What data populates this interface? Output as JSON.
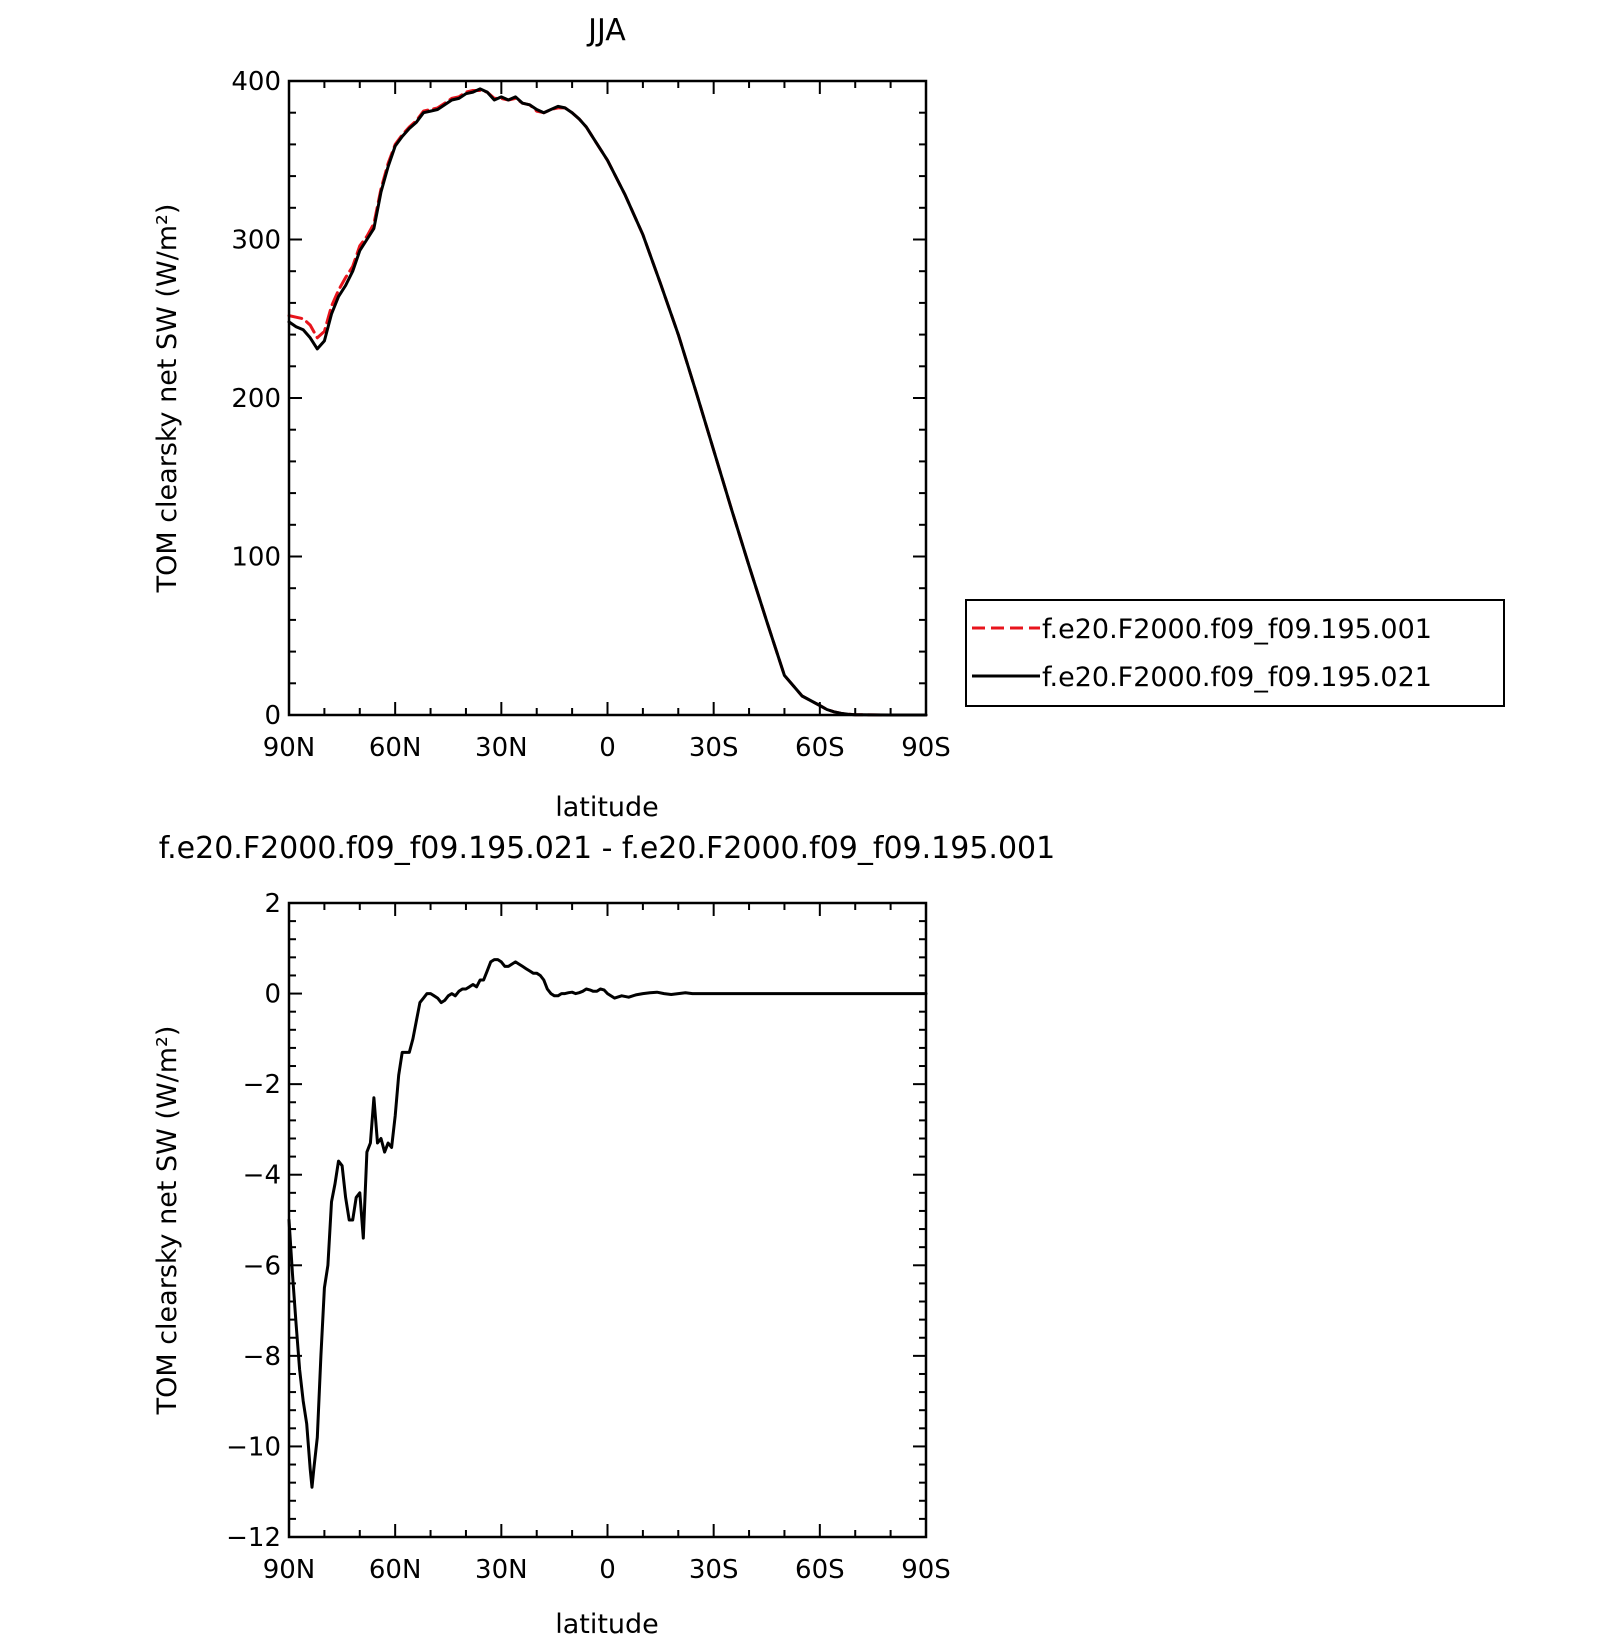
{
  "chart_data": [
    {
      "type": "line",
      "title": "JJA",
      "xlabel": "latitude",
      "ylabel": "TOM clearsky net SW (W/m²)",
      "xlim": [
        90,
        -90
      ],
      "ylim": [
        0,
        400
      ],
      "x_ticks": [
        {
          "value": 90,
          "label": "90N"
        },
        {
          "value": 60,
          "label": "60N"
        },
        {
          "value": 30,
          "label": "30N"
        },
        {
          "value": 0,
          "label": "0"
        },
        {
          "value": -30,
          "label": "30S"
        },
        {
          "value": -60,
          "label": "60S"
        },
        {
          "value": -90,
          "label": "90S"
        }
      ],
      "y_ticks": [
        0,
        100,
        200,
        300,
        400
      ],
      "legend_position": "right",
      "series": [
        {
          "name": "f.e20.F2000.f09_f09.195.001",
          "color": "#e8141c",
          "dash": "dashed",
          "x": [
            90,
            88,
            86,
            84,
            82,
            80,
            78,
            76,
            74,
            72,
            70,
            68,
            66,
            64,
            62,
            60,
            58,
            56,
            54,
            52,
            50,
            48,
            46,
            44,
            42,
            40,
            38,
            36,
            34,
            32,
            30,
            28,
            26,
            24,
            22,
            20,
            18,
            16,
            14,
            12,
            10,
            8,
            6,
            4,
            2,
            0,
            -5,
            -10,
            -15,
            -20,
            -25,
            -30,
            -35,
            -40,
            -45,
            -50,
            -55,
            -60,
            -62,
            -64,
            -66,
            -68,
            -70,
            -72,
            -75,
            -80,
            -85,
            -90
          ],
          "y": [
            252,
            251,
            250,
            246,
            238,
            242,
            258,
            268,
            276,
            283,
            296,
            302,
            310,
            332,
            348,
            360,
            366,
            371,
            375,
            381,
            382,
            383,
            386,
            389,
            390,
            393,
            394,
            394,
            393,
            389,
            389,
            388,
            389,
            386,
            385,
            381,
            380,
            382,
            383,
            383,
            380,
            376,
            371,
            364,
            357,
            350,
            328,
            303,
            272,
            240,
            204,
            167,
            130,
            94,
            59,
            25,
            12,
            6,
            3.5,
            2,
            1,
            0.5,
            0.2,
            0.1,
            0.05,
            0,
            0,
            0
          ]
        },
        {
          "name": "f.e20.F2000.f09_f09.195.021",
          "color": "#000000",
          "dash": "solid",
          "x": [
            90,
            88,
            86,
            84,
            82,
            80,
            78,
            76,
            74,
            72,
            70,
            68,
            66,
            64,
            62,
            60,
            58,
            56,
            54,
            52,
            50,
            48,
            46,
            44,
            42,
            40,
            38,
            36,
            34,
            32,
            30,
            28,
            26,
            24,
            22,
            20,
            18,
            16,
            14,
            12,
            10,
            8,
            6,
            4,
            2,
            0,
            -5,
            -10,
            -15,
            -20,
            -25,
            -30,
            -35,
            -40,
            -45,
            -50,
            -55,
            -60,
            -62,
            -64,
            -66,
            -68,
            -70,
            -72,
            -75,
            -80,
            -85,
            -90
          ],
          "y": [
            248,
            245,
            243,
            238,
            231,
            236,
            253,
            264,
            271,
            280,
            293,
            300,
            307,
            330,
            346,
            359,
            365,
            370,
            374,
            380,
            381,
            382,
            385,
            388,
            389,
            392,
            393,
            395,
            393,
            388,
            390,
            388,
            390,
            386,
            385,
            382,
            380,
            382,
            384,
            383,
            380,
            376,
            371,
            364,
            357,
            350,
            328,
            303,
            272,
            240,
            204,
            167,
            130,
            94,
            59,
            25,
            12,
            6,
            3.5,
            2,
            1,
            0.5,
            0.2,
            0.1,
            0.05,
            0,
            0,
            0
          ]
        }
      ]
    },
    {
      "type": "line",
      "title": "f.e20.F2000.f09_f09.195.021 - f.e20.F2000.f09_f09.195.001",
      "xlabel": "latitude",
      "ylabel": "TOM clearsky net SW (W/m²)",
      "xlim": [
        90,
        -90
      ],
      "ylim": [
        -12,
        2
      ],
      "x_ticks": [
        {
          "value": 90,
          "label": "90N"
        },
        {
          "value": 60,
          "label": "60N"
        },
        {
          "value": 30,
          "label": "30N"
        },
        {
          "value": 0,
          "label": "0"
        },
        {
          "value": -30,
          "label": "30S"
        },
        {
          "value": -60,
          "label": "60S"
        },
        {
          "value": -90,
          "label": "90S"
        }
      ],
      "y_ticks": [
        -12,
        -10,
        -8,
        -6,
        -4,
        -2,
        0,
        2
      ],
      "series": [
        {
          "color": "#000000",
          "dash": "solid",
          "x": [
            90,
            89,
            88,
            87,
            86,
            85,
            84,
            83.5,
            83,
            82,
            81,
            80,
            79,
            78,
            77,
            76,
            75,
            74,
            73,
            72,
            71,
            70,
            69,
            68,
            67,
            66,
            65,
            64,
            63,
            62,
            61,
            60,
            59,
            58,
            57,
            56,
            55,
            54,
            53,
            52,
            51,
            50,
            49,
            48,
            47,
            46,
            45,
            44,
            43,
            42,
            41,
            40,
            39,
            38,
            37,
            36,
            35,
            34,
            33,
            32,
            31,
            30,
            29,
            28,
            27,
            26,
            25,
            24,
            23,
            22,
            21,
            20,
            19,
            18,
            17,
            16,
            15,
            14,
            13,
            12,
            11,
            10,
            9,
            8,
            7,
            6,
            5,
            4,
            3,
            2,
            1,
            0,
            -2,
            -4,
            -6,
            -8,
            -10,
            -12,
            -14,
            -16,
            -18,
            -20,
            -22,
            -24,
            -26,
            -28,
            -30,
            -32,
            -34,
            -36,
            -38,
            -40,
            -42,
            -44,
            -46,
            -48,
            -50,
            -55,
            -60,
            -65,
            -70,
            -75,
            -80,
            -85,
            -90
          ],
          "y": [
            -5.0,
            -6.2,
            -7.3,
            -8.3,
            -9.0,
            -9.5,
            -10.5,
            -10.9,
            -10.5,
            -9.8,
            -8.0,
            -6.5,
            -6.0,
            -4.6,
            -4.2,
            -3.7,
            -3.8,
            -4.5,
            -5.0,
            -5.0,
            -4.5,
            -4.4,
            -5.4,
            -3.5,
            -3.3,
            -2.3,
            -3.3,
            -3.2,
            -3.5,
            -3.3,
            -3.4,
            -2.7,
            -1.8,
            -1.3,
            -1.3,
            -1.3,
            -1.0,
            -0.6,
            -0.2,
            -0.1,
            0.0,
            0.0,
            -0.05,
            -0.1,
            -0.2,
            -0.15,
            -0.05,
            0.0,
            -0.05,
            0.05,
            0.1,
            0.1,
            0.15,
            0.2,
            0.15,
            0.3,
            0.3,
            0.5,
            0.7,
            0.75,
            0.75,
            0.7,
            0.6,
            0.6,
            0.65,
            0.7,
            0.65,
            0.6,
            0.55,
            0.5,
            0.45,
            0.45,
            0.4,
            0.3,
            0.1,
            0.0,
            -0.05,
            -0.05,
            0.0,
            0.0,
            0.02,
            0.03,
            0.0,
            0.02,
            0.05,
            0.1,
            0.08,
            0.05,
            0.05,
            0.1,
            0.08,
            0.0,
            -0.1,
            -0.05,
            -0.08,
            -0.03,
            0.0,
            0.02,
            0.03,
            0.0,
            -0.02,
            0.0,
            0.02,
            0.0,
            0.0,
            0.0,
            0.0,
            0.0,
            0.0,
            0.0,
            0.0,
            0.0,
            0.0,
            0.0,
            0.0,
            0.0,
            0.0,
            0.0,
            0.0,
            0.0,
            0.0,
            0.0,
            0.0,
            0.0,
            0.0
          ]
        }
      ]
    }
  ]
}
